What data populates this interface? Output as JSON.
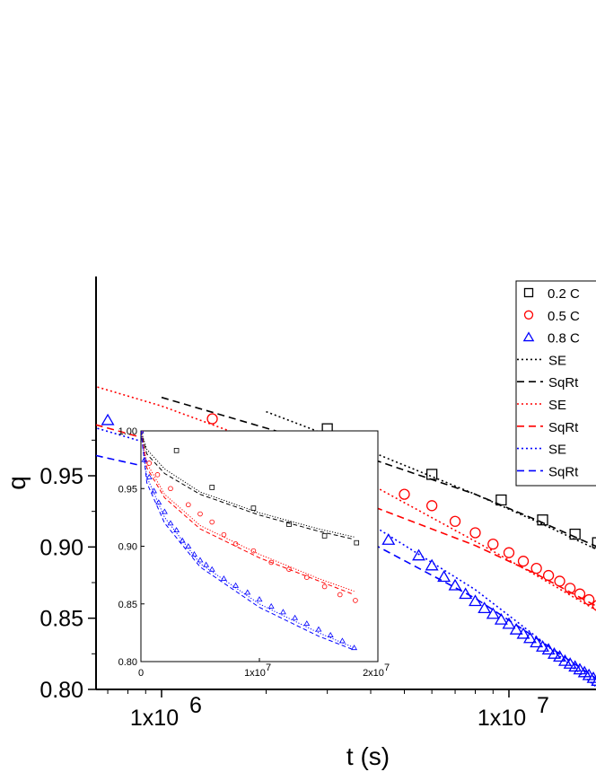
{
  "chart_data": [
    {
      "type": "scatter",
      "xlabel": "t (s)",
      "ylabel": "q",
      "xscale": "log",
      "xlim": [
        600000,
        18000000
      ],
      "ylim": [
        0.8,
        0.99
      ],
      "x_ticks": [
        {
          "value": 1000000,
          "mantissa": "1x10",
          "exp": "6"
        },
        {
          "value": 10000000,
          "mantissa": "1x10",
          "exp": "7"
        }
      ],
      "y_ticks": [
        {
          "value": 0.8,
          "label": "0.80"
        },
        {
          "value": 0.85,
          "label": "0.85"
        },
        {
          "value": 0.9,
          "label": "0.90"
        },
        {
          "value": 0.95,
          "label": "0.95"
        }
      ],
      "legend_position": "top-right",
      "series": [
        {
          "name": "0.2 C",
          "color": "#000000",
          "marker": "square",
          "x": [
            3000000,
            6000000,
            9500000,
            12500000,
            15500000,
            18000000
          ],
          "y": [
            0.983,
            0.951,
            0.933,
            0.919,
            0.909,
            0.903
          ]
        },
        {
          "name": "0.5 C",
          "color": "#ff0000",
          "marker": "circle",
          "x": [
            1400000,
            2500000,
            4000000,
            5000000,
            6000000,
            7000000,
            8000000,
            9000000,
            10000000,
            11000000,
            12000000,
            13000000,
            14000000,
            15000000,
            16000000,
            17000000,
            18000000
          ],
          "y": [
            0.99,
            0.96,
            0.946,
            0.937,
            0.929,
            0.918,
            0.91,
            0.902,
            0.896,
            0.89,
            0.885,
            0.88,
            0.876,
            0.871,
            0.867,
            0.863,
            0.859
          ]
        },
        {
          "name": "0.8 C",
          "color": "#0000ff",
          "marker": "triangle",
          "x": [
            700000,
            1700000,
            2300000,
            3000000,
            3500000,
            4000000,
            4500000,
            5500000,
            6000000,
            6500000,
            7000000,
            7500000,
            8000000,
            8500000,
            9000000,
            9500000,
            10000000,
            10500000,
            11000000,
            11500000,
            12000000,
            12500000,
            13000000,
            13500000,
            14000000,
            14500000,
            15000000,
            15500000,
            16000000,
            16500000,
            17000000,
            17500000,
            18000000
          ],
          "y": [
            0.989,
            0.959,
            0.939,
            0.928,
            0.921,
            0.914,
            0.905,
            0.894,
            0.887,
            0.879,
            0.873,
            0.867,
            0.862,
            0.857,
            0.853,
            0.849,
            0.846,
            0.842,
            0.839,
            0.836,
            0.833,
            0.83,
            0.828,
            0.825,
            0.823,
            0.82,
            0.818,
            0.816,
            0.814,
            0.812,
            0.81,
            0.808,
            0.806
          ]
        },
        {
          "name": "SE",
          "color": "#000000",
          "line": "dotted",
          "x": [
            2000000,
            4000000,
            8000000,
            12000000,
            18000000
          ],
          "y": [
            0.995,
            0.967,
            0.937,
            0.918,
            0.898
          ]
        },
        {
          "name": "SqRt",
          "color": "#000000",
          "line": "dashed",
          "x": [
            1000000,
            4000000,
            8000000,
            12000000,
            18000000
          ],
          "y": [
            1.005,
            0.962,
            0.937,
            0.919,
            0.9
          ]
        },
        {
          "name": "SE",
          "color": "#ff0000",
          "line": "dotted",
          "x": [
            600000,
            1000000,
            2000000,
            4000000,
            8000000,
            12000000,
            18000000
          ],
          "y": [
            1.015,
            0.999,
            0.972,
            0.944,
            0.904,
            0.88,
            0.855
          ]
        },
        {
          "name": "SqRt",
          "color": "#ff0000",
          "line": "dashed",
          "x": [
            600000,
            1000000,
            2000000,
            4000000,
            8000000,
            12000000,
            18000000
          ],
          "y": [
            0.988,
            0.973,
            0.954,
            0.929,
            0.901,
            0.881,
            0.858
          ]
        },
        {
          "name": "SE",
          "color": "#0000ff",
          "line": "dotted",
          "x": [
            600000,
            1000000,
            2000000,
            4000000,
            8000000,
            12000000,
            18000000
          ],
          "y": [
            0.986,
            0.97,
            0.944,
            0.916,
            0.87,
            0.837,
            0.801
          ]
        },
        {
          "name": "SqRt",
          "color": "#0000ff",
          "line": "dashed",
          "x": [
            600000,
            1000000,
            2000000,
            4000000,
            8000000,
            12000000,
            18000000
          ],
          "y": [
            0.966,
            0.954,
            0.93,
            0.903,
            0.864,
            0.836,
            0.807
          ]
        }
      ]
    },
    {
      "type": "scatter",
      "inset": true,
      "xscale": "linear",
      "xlim": [
        0,
        20000000
      ],
      "ylim": [
        0.8,
        1.0
      ],
      "x_ticks": [
        {
          "value": 0,
          "mantissa": "0",
          "exp": ""
        },
        {
          "value": 10000000,
          "mantissa": "1x10",
          "exp": "7"
        },
        {
          "value": 20000000,
          "mantissa": "2x10",
          "exp": "7"
        }
      ],
      "y_ticks": [
        {
          "value": 0.8,
          "label": "0.80"
        },
        {
          "value": 0.85,
          "label": "0.85"
        },
        {
          "value": 0.9,
          "label": "0.90"
        },
        {
          "value": 0.95,
          "label": "0.95"
        },
        {
          "value": 1.0,
          "label": "1.00"
        }
      ],
      "series": [
        {
          "name": "0.2 C",
          "color": "#000000",
          "marker": "square",
          "x": [
            0,
            3000000,
            6000000,
            9500000,
            12500000,
            15500000,
            18200000
          ],
          "y": [
            1.0,
            0.983,
            0.951,
            0.933,
            0.919,
            0.909,
            0.903
          ]
        },
        {
          "name": "0.5 C",
          "color": "#ff0000",
          "marker": "circle",
          "x": [
            0,
            700000,
            1400000,
            2500000,
            4000000,
            5000000,
            6000000,
            7000000,
            8000000,
            9500000,
            11000000,
            12500000,
            14000000,
            15500000,
            16800000,
            18100000
          ],
          "y": [
            1.0,
            0.972,
            0.962,
            0.95,
            0.936,
            0.928,
            0.921,
            0.91,
            0.902,
            0.896,
            0.886,
            0.88,
            0.873,
            0.865,
            0.858,
            0.853
          ]
        },
        {
          "name": "0.8 C",
          "color": "#0000ff",
          "marker": "triangle",
          "x": [
            0,
            300000,
            700000,
            1100000,
            1500000,
            2000000,
            2500000,
            3000000,
            3500000,
            4000000,
            4500000,
            5000000,
            5500000,
            6000000,
            7000000,
            8000000,
            9000000,
            10000000,
            11000000,
            12000000,
            13000000,
            14000000,
            15000000,
            16000000,
            17000000,
            18000000
          ],
          "y": [
            1.0,
            0.975,
            0.96,
            0.948,
            0.938,
            0.93,
            0.92,
            0.914,
            0.905,
            0.9,
            0.893,
            0.888,
            0.884,
            0.88,
            0.872,
            0.866,
            0.86,
            0.854,
            0.848,
            0.843,
            0.838,
            0.833,
            0.828,
            0.823,
            0.818,
            0.812
          ]
        },
        {
          "name": "SE",
          "color": "#000000",
          "line": "dotted",
          "x": [
            0,
            500000,
            2000000,
            5000000,
            10000000,
            15000000,
            18000000
          ],
          "y": [
            1.0,
            0.984,
            0.967,
            0.947,
            0.929,
            0.915,
            0.908
          ]
        },
        {
          "name": "SqRt",
          "color": "#000000",
          "line": "dashed",
          "x": [
            0,
            500000,
            2000000,
            5000000,
            10000000,
            15000000,
            18000000
          ],
          "y": [
            1.0,
            0.98,
            0.963,
            0.945,
            0.927,
            0.913,
            0.906
          ]
        },
        {
          "name": "SE",
          "color": "#ff0000",
          "line": "dotted",
          "x": [
            0,
            500000,
            2000000,
            5000000,
            10000000,
            15000000,
            18000000
          ],
          "y": [
            1.0,
            0.972,
            0.945,
            0.918,
            0.893,
            0.872,
            0.861
          ]
        },
        {
          "name": "SqRt",
          "color": "#ff0000",
          "line": "dashed",
          "x": [
            0,
            500000,
            2000000,
            5000000,
            10000000,
            15000000,
            18000000
          ],
          "y": [
            1.0,
            0.968,
            0.942,
            0.915,
            0.89,
            0.87,
            0.858
          ]
        },
        {
          "name": "SE",
          "color": "#0000ff",
          "line": "dotted",
          "x": [
            0,
            500000,
            2000000,
            5000000,
            10000000,
            15000000,
            18000000
          ],
          "y": [
            1.0,
            0.96,
            0.925,
            0.885,
            0.85,
            0.825,
            0.812
          ]
        },
        {
          "name": "SqRt",
          "color": "#0000ff",
          "line": "dashed",
          "x": [
            0,
            500000,
            2000000,
            5000000,
            10000000,
            15000000,
            18000000
          ],
          "y": [
            1.0,
            0.955,
            0.92,
            0.882,
            0.847,
            0.822,
            0.81
          ]
        }
      ]
    }
  ]
}
